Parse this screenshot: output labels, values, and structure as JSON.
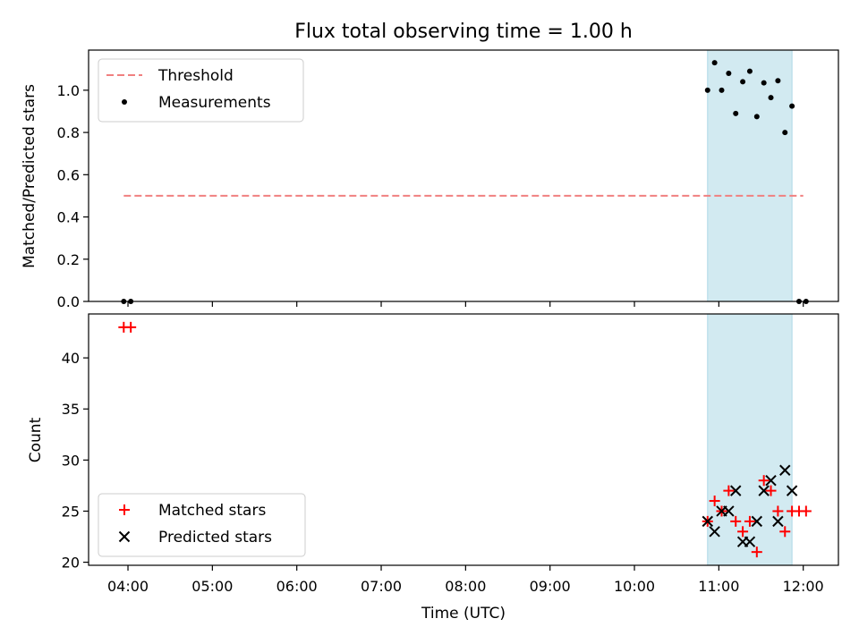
{
  "chart_data": [
    {
      "type": "scatter",
      "title": "Flux total observing time = 1.00 h",
      "xlabel": "",
      "ylabel": "Matched/Predicted stars",
      "xlim": [
        "03:32",
        "12:25"
      ],
      "ylim": [
        0,
        1.19
      ],
      "yticks": [
        "0.0",
        "0.2",
        "0.4",
        "0.6",
        "0.8",
        "1.0"
      ],
      "grid": false,
      "legend": "top-left",
      "highlight_span": {
        "from": "10:52",
        "to": "11:52",
        "color": "#add8e6"
      },
      "series": [
        {
          "name": "Threshold",
          "kind": "line",
          "style": "dashed",
          "color": "#f08080",
          "x": [
            "03:57",
            "12:00"
          ],
          "y": [
            0.5,
            0.5
          ]
        },
        {
          "name": "Measurements",
          "kind": "scatter",
          "marker": "dot",
          "color": "#000000",
          "x": [
            "03:57",
            "04:02",
            "10:52",
            "10:57",
            "11:02",
            "11:07",
            "11:12",
            "11:17",
            "11:22",
            "11:27",
            "11:32",
            "11:37",
            "11:42",
            "11:47",
            "11:52",
            "11:57",
            "12:02"
          ],
          "y": [
            0.0,
            0.0,
            1.0,
            1.13,
            1.0,
            1.08,
            0.89,
            1.04,
            1.09,
            0.875,
            1.035,
            0.965,
            1.045,
            0.8,
            0.925,
            0.0,
            0.0
          ]
        }
      ]
    },
    {
      "type": "scatter",
      "title": "",
      "xlabel": "Time (UTC)",
      "ylabel": "Count",
      "xlim": [
        "03:32",
        "12:25"
      ],
      "ylim": [
        19.7,
        44.3
      ],
      "xticks": [
        "04:00",
        "05:00",
        "06:00",
        "07:00",
        "08:00",
        "09:00",
        "10:00",
        "11:00",
        "12:00"
      ],
      "yticks": [
        "20",
        "25",
        "30",
        "35",
        "40"
      ],
      "grid": false,
      "legend": "bottom-left",
      "highlight_span": {
        "from": "10:52",
        "to": "11:52",
        "color": "#add8e6"
      },
      "series": [
        {
          "name": "Matched stars",
          "kind": "scatter",
          "marker": "plus",
          "color": "#ff0000",
          "x": [
            "03:57",
            "04:02",
            "10:52",
            "10:57",
            "11:02",
            "11:07",
            "11:12",
            "11:17",
            "11:22",
            "11:27",
            "11:32",
            "11:37",
            "11:42",
            "11:47",
            "11:52",
            "11:57",
            "12:02"
          ],
          "y": [
            43,
            43,
            24,
            26,
            25,
            27,
            24,
            23,
            24,
            21,
            28,
            27,
            25,
            23,
            25,
            25,
            25
          ]
        },
        {
          "name": "Predicted stars",
          "kind": "scatter",
          "marker": "x",
          "color": "#000000",
          "x": [
            "10:52",
            "10:57",
            "11:02",
            "11:07",
            "11:12",
            "11:17",
            "11:22",
            "11:27",
            "11:32",
            "11:37",
            "11:42",
            "11:47",
            "11:52"
          ],
          "y": [
            24,
            23,
            25,
            25,
            27,
            22,
            22,
            24,
            27,
            28,
            24,
            29,
            27
          ]
        }
      ]
    }
  ]
}
